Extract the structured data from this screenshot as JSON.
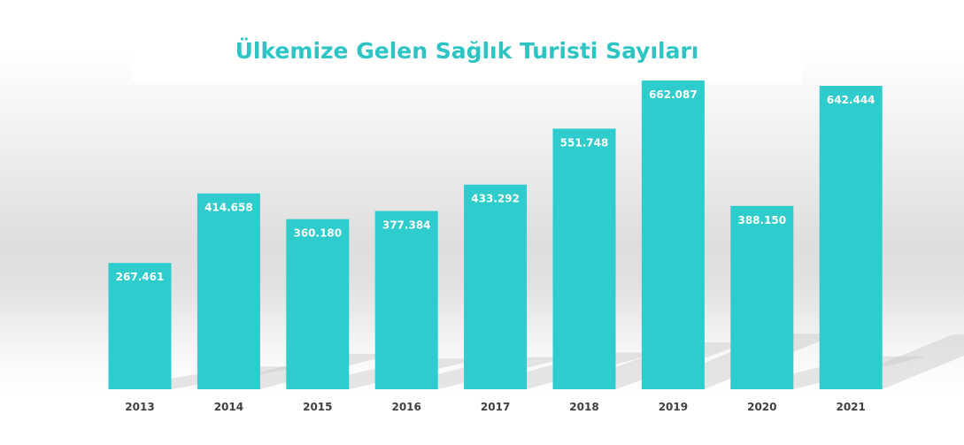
{
  "chart_data": {
    "type": "bar",
    "title": "Ülkemize Gelen Sağlık Turisti Sayıları",
    "categories": [
      "2013",
      "2014",
      "2015",
      "2016",
      "2017",
      "2018",
      "2019",
      "2020",
      "2021"
    ],
    "values": [
      267461,
      414658,
      360180,
      377384,
      433292,
      551748,
      662087,
      388150,
      642444
    ],
    "value_labels": [
      "267.461",
      "414.658",
      "360.180",
      "377.384",
      "433.292",
      "551.748",
      "662.087",
      "388.150",
      "642.444"
    ],
    "ylim": [
      0,
      650000
    ],
    "grid": false,
    "legend": "none",
    "colors": {
      "bar": "#2ecccc",
      "title": "#2ec4c4",
      "value_label": "#ffffff",
      "category_label": "#404040"
    }
  }
}
